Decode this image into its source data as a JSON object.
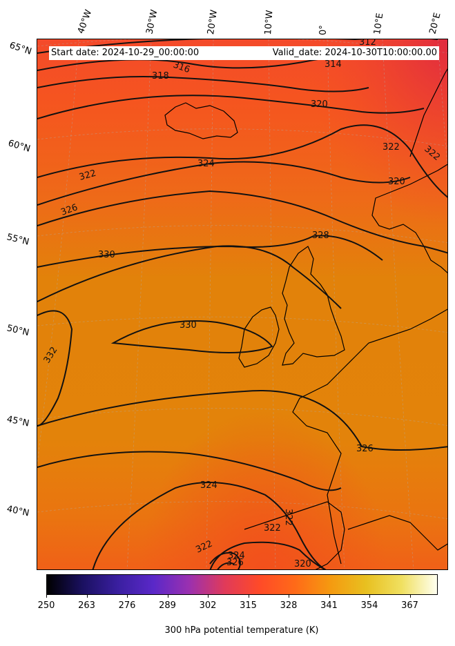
{
  "banner": {
    "start": "Start date: 2024-10-29_00:00:00",
    "valid": "Valid_date: 2024-10-30T10:00:00.00"
  },
  "longitude_labels": [
    "40°W",
    "30°W",
    "20°W",
    "10°W",
    "0°",
    "10°E",
    "20°E"
  ],
  "latitude_labels": [
    "65°N",
    "60°N",
    "55°N",
    "50°N",
    "45°N",
    "40°N"
  ],
  "contour_labels": [
    "312",
    "316",
    "318",
    "314",
    "320",
    "322",
    "324",
    "322",
    "320",
    "326",
    "328",
    "330",
    "330",
    "332",
    "326",
    "324",
    "322",
    "322",
    "322",
    "324",
    "326",
    "320",
    "322"
  ],
  "colorbar": {
    "label": "300 hPa potential temperature (K)",
    "ticks": [
      "250",
      "263",
      "276",
      "289",
      "302",
      "315",
      "328",
      "341",
      "354",
      "367"
    ],
    "colors": [
      "#000000",
      "#1a1060",
      "#3a1fa0",
      "#5a28c8",
      "#9a30b0",
      "#e03a5a",
      "#ff4a28",
      "#ff6a18",
      "#f59a10",
      "#e8c020",
      "#f0e060",
      "#fffff0"
    ]
  },
  "field_colors": {
    "warm_high": "#f4452c",
    "mid": "#f0641e",
    "low": "#e68a0a",
    "ocean": "#e27d06"
  }
}
